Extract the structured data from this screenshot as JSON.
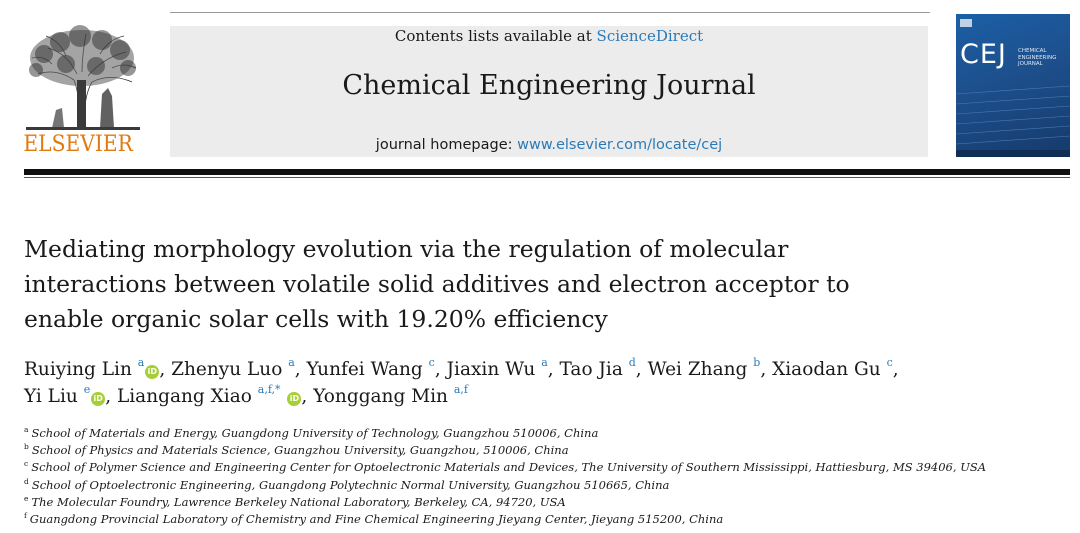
{
  "header": {
    "publisher_name": "ELSEVIER",
    "contents_prefix": "Contents lists available at ",
    "contents_link": "ScienceDirect",
    "journal_title": "Chemical Engineering Journal",
    "homepage_prefix": "journal homepage: ",
    "homepage_link": "www.elsevier.com/locate/cej"
  },
  "cover": {
    "abbreviation": "CEJ",
    "name_line1": "CHEMICAL",
    "name_line2": "ENGINEERING",
    "name_line3": "JOURNAL"
  },
  "article": {
    "title_line1": "Mediating morphology evolution via the regulation of molecular",
    "title_line2": "interactions between volatile solid additives and electron acceptor to",
    "title_line3": "enable organic solar cells with 19.20% efficiency"
  },
  "authors": [
    {
      "name": "Ruiying Lin",
      "sup": "a",
      "orcid": true,
      "sep": ", "
    },
    {
      "name": "Zhenyu Luo",
      "sup": "a",
      "orcid": false,
      "sep": ", "
    },
    {
      "name": "Yunfei Wang",
      "sup": "c",
      "orcid": false,
      "sep": ", "
    },
    {
      "name": "Jiaxin Wu",
      "sup": "a",
      "orcid": false,
      "sep": ", "
    },
    {
      "name": "Tao Jia",
      "sup": "d",
      "orcid": false,
      "sep": ", "
    },
    {
      "name": "Wei Zhang",
      "sup": "b",
      "orcid": false,
      "sep": ", "
    },
    {
      "name": "Xiaodan Gu",
      "sup": "c",
      "orcid": false,
      "sep": ","
    },
    {
      "name": "Yi Liu",
      "sup": "e",
      "orcid": true,
      "sep": ", "
    },
    {
      "name": "Liangang Xiao",
      "sup": "a,f,*",
      "orcid": true,
      "sep": ", "
    },
    {
      "name": "Yonggang Min",
      "sup": "a,f",
      "orcid": false,
      "sep": ""
    }
  ],
  "orcid_label": "iD",
  "affiliations": [
    {
      "key": "a",
      "text": "School of Materials and Energy, Guangdong University of Technology, Guangzhou 510006, China"
    },
    {
      "key": "b",
      "text": "School of Physics and Materials Science, Guangzhou University, Guangzhou, 510006, China"
    },
    {
      "key": "c",
      "text": "School of Polymer Science and Engineering Center for Optoelectronic Materials and Devices, The University of Southern Mississippi, Hattiesburg, MS 39406, USA"
    },
    {
      "key": "d",
      "text": "School of Optoelectronic Engineering, Guangdong Polytechnic Normal University, Guangzhou 510665, China"
    },
    {
      "key": "e",
      "text": "The Molecular Foundry, Lawrence Berkeley National Laboratory, Berkeley, CA, 94720, USA"
    },
    {
      "key": "f",
      "text": "Guangdong Provincial Laboratory of Chemistry and Fine Chemical Engineering Jieyang Center, Jieyang 515200, China"
    }
  ],
  "colors": {
    "publisher_orange": "#e07a10",
    "link_blue": "#2a7ab8",
    "orcid_green": "#a6ce39",
    "cover_blue": "#1d4f8c"
  }
}
